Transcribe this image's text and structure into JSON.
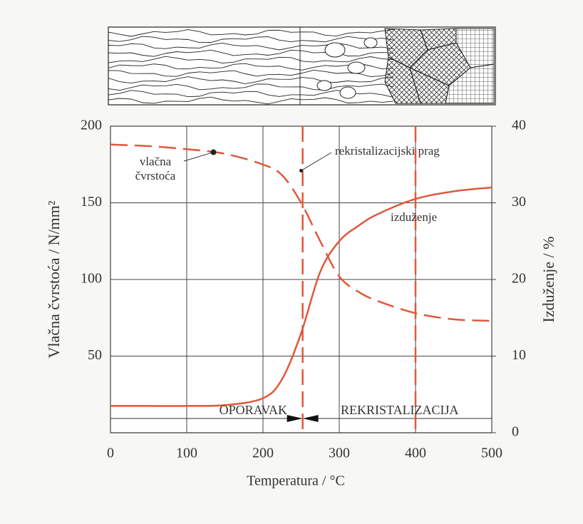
{
  "chart_data": {
    "type": "line",
    "x": [
      0,
      50,
      100,
      150,
      200,
      225,
      250,
      275,
      300,
      325,
      350,
      400,
      450,
      500
    ],
    "series": [
      {
        "color": "#e0583c",
        "dash": true,
        "values": [
          188,
          187,
          185,
          182,
          175,
          168,
          150,
          125,
          102,
          92,
          86,
          78,
          74,
          73
        ]
      },
      {
        "color": "#e0583c",
        "dash": false,
        "axis": "y2",
        "values": [
          3.5,
          3.5,
          3.5,
          3.6,
          4.5,
          7,
          13,
          21,
          25,
          27,
          28.5,
          30.5,
          31.5,
          32
        ]
      }
    ],
    "xlim": [
      0,
      500
    ],
    "xticks": [
      0,
      100,
      200,
      300,
      400,
      500
    ],
    "ylim": [
      0,
      200
    ],
    "yticks": [
      50,
      100,
      150,
      200
    ],
    "y2lim": [
      0,
      40
    ],
    "y2ticks": [
      0,
      10,
      20,
      30,
      40
    ],
    "xlabel": "Temperatura / °C",
    "ylabel": "Vlačna čvrstoća / N/mm²",
    "y2label": "Izduženje / %",
    "grid": true,
    "vlines": [
      252,
      400
    ],
    "annotations": [
      {
        "text": "vlačna čvrstoća",
        "x": 135,
        "y": 183
      },
      {
        "text": "rekristalizacijski prag",
        "x": 250,
        "y": 171
      },
      {
        "text": "izduženje"
      }
    ],
    "regions": [
      "OPORAVAK",
      "REKRISTALIZACIJA"
    ]
  }
}
